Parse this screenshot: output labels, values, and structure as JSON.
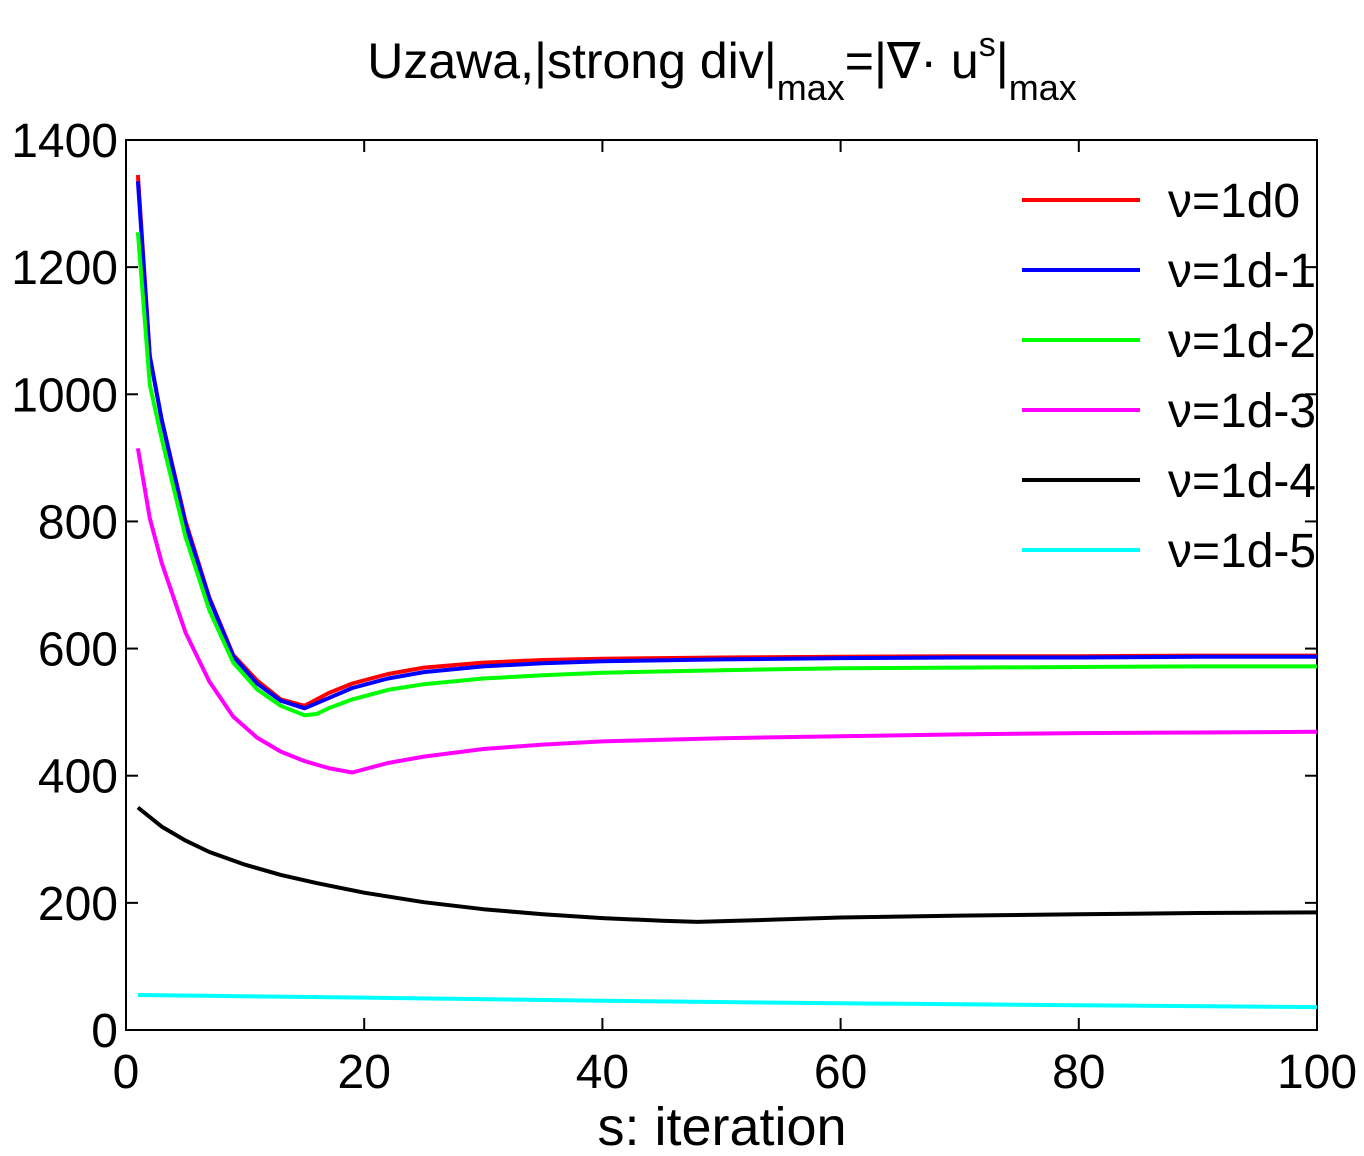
{
  "chart_data": {
    "type": "line",
    "title": {
      "prefix": "Uzawa,|strong div|",
      "sub1": "max",
      "mid": "=|∇· u",
      "sup": "s",
      "bar": "|",
      "sub2": "max"
    },
    "xlabel": "s: iteration",
    "ylabel": "",
    "xlim": [
      0,
      100
    ],
    "ylim": [
      0,
      1400
    ],
    "xticks": [
      0,
      20,
      40,
      60,
      80,
      100
    ],
    "yticks": [
      0,
      200,
      400,
      600,
      800,
      1000,
      1200,
      1400
    ],
    "xtick_labels": [
      "0",
      "20",
      "40",
      "60",
      "80",
      "100"
    ],
    "ytick_labels": [
      "0",
      "200",
      "400",
      "600",
      "800",
      "1000",
      "1200",
      "1400"
    ],
    "legend_position": "top-right",
    "series": [
      {
        "name": "ν=1d0",
        "color": "#ff0000",
        "x": [
          1,
          2,
          3,
          5,
          7,
          9,
          11,
          13,
          15,
          17,
          19,
          22,
          25,
          30,
          35,
          40,
          50,
          60,
          70,
          80,
          90,
          100
        ],
        "y": [
          1345,
          1060,
          960,
          800,
          680,
          590,
          550,
          520,
          510,
          530,
          545,
          560,
          570,
          578,
          582,
          584,
          586,
          587,
          588,
          588,
          589,
          589
        ]
      },
      {
        "name": "ν=1d-1",
        "color": "#0000ff",
        "x": [
          1,
          2,
          3,
          5,
          7,
          9,
          11,
          13,
          15,
          17,
          19,
          22,
          25,
          30,
          35,
          40,
          50,
          60,
          70,
          80,
          90,
          100
        ],
        "y": [
          1335,
          1060,
          960,
          795,
          678,
          588,
          545,
          518,
          506,
          522,
          538,
          553,
          563,
          572,
          577,
          580,
          583,
          585,
          586,
          586,
          587,
          587
        ]
      },
      {
        "name": "ν=1d-2",
        "color": "#00ff00",
        "x": [
          1,
          2,
          3,
          5,
          7,
          9,
          11,
          13,
          15,
          16,
          17,
          19,
          22,
          25,
          30,
          35,
          40,
          50,
          60,
          70,
          80,
          90,
          100
        ],
        "y": [
          1255,
          1015,
          930,
          775,
          660,
          578,
          536,
          510,
          495,
          497,
          506,
          520,
          535,
          544,
          553,
          558,
          562,
          566,
          569,
          570,
          571,
          572,
          572
        ]
      },
      {
        "name": "ν=1d-3",
        "color": "#ff00ff",
        "x": [
          1,
          2,
          3,
          5,
          7,
          9,
          11,
          13,
          15,
          17,
          19,
          22,
          25,
          30,
          35,
          40,
          50,
          60,
          70,
          80,
          90,
          100
        ],
        "y": [
          915,
          805,
          735,
          625,
          548,
          493,
          460,
          438,
          423,
          412,
          405,
          420,
          430,
          442,
          449,
          454,
          459,
          462,
          465,
          467,
          468,
          469
        ]
      },
      {
        "name": "ν=1d-4",
        "color": "#000000",
        "x": [
          1,
          3,
          5,
          7,
          10,
          13,
          16,
          20,
          25,
          30,
          35,
          40,
          45,
          48,
          55,
          60,
          70,
          80,
          90,
          100
        ],
        "y": [
          350,
          320,
          298,
          280,
          260,
          244,
          231,
          216,
          201,
          190,
          182,
          176,
          172,
          170,
          174,
          177,
          180,
          182,
          184,
          185
        ]
      },
      {
        "name": "ν=1d-5",
        "color": "#00ffff",
        "x": [
          1,
          20,
          40,
          60,
          80,
          100
        ],
        "y": [
          55,
          51,
          46,
          42,
          39,
          36
        ]
      }
    ]
  }
}
